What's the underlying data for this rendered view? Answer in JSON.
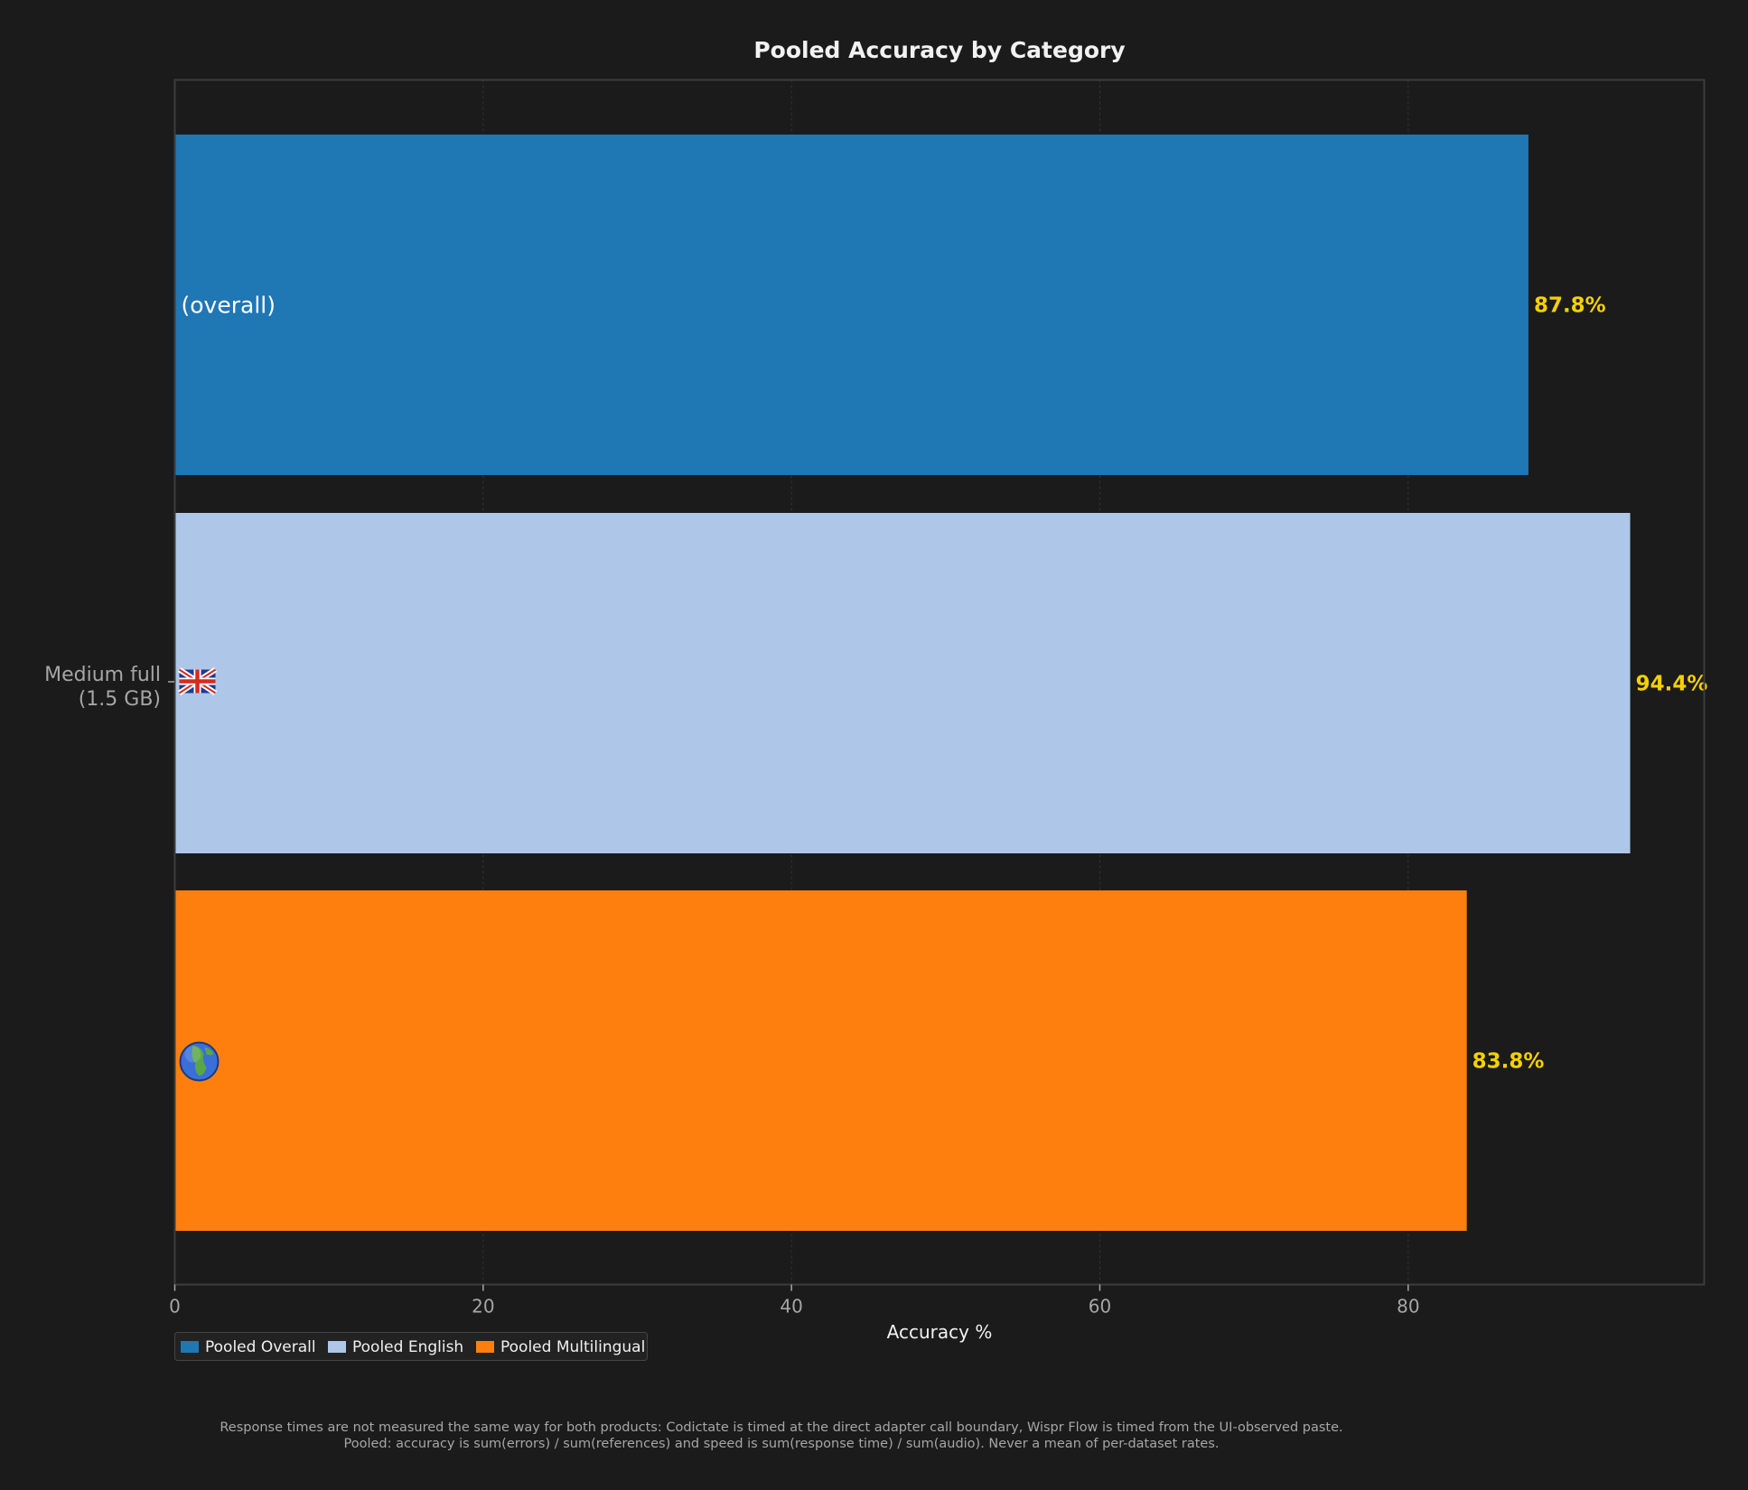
{
  "colors": {
    "background": "#1b1b1b",
    "frame": "#3c3c3c",
    "grid": "#333333",
    "value_label": "#f5d000"
  },
  "chart_data": {
    "type": "bar",
    "orientation": "horizontal",
    "title": "Pooled Accuracy by Category",
    "xlabel": "Accuracy %",
    "ylabel": "",
    "xlim": [
      0,
      99.2
    ],
    "xticks": [
      0,
      20,
      40,
      60,
      80
    ],
    "grid": true,
    "legend_placement": "bottom-left",
    "category_label": [
      "Medium full",
      "(1.5 GB)"
    ],
    "bars": [
      {
        "series": "Pooled Overall",
        "value": 87.8,
        "label": "87.8%",
        "inner_text": "(overall)",
        "icon": "",
        "color": "#1f77b4"
      },
      {
        "series": "Pooled English",
        "value": 94.4,
        "label": "94.4%",
        "inner_text": "",
        "icon": "uk-flag-icon",
        "color": "#aec7e8"
      },
      {
        "series": "Pooled Multilingual",
        "value": 83.8,
        "label": "83.8%",
        "inner_text": "",
        "icon": "globe-icon",
        "color": "#ff7f0e"
      }
    ]
  },
  "footnote": {
    "line1": "Response times are not measured the same way for both products: Codictate is timed at the direct adapter call boundary, Wispr Flow is timed from the UI-observed paste.",
    "line2": "Pooled: accuracy is sum(errors) / sum(references) and speed is sum(response time) / sum(audio). Never a mean of per-dataset rates."
  }
}
